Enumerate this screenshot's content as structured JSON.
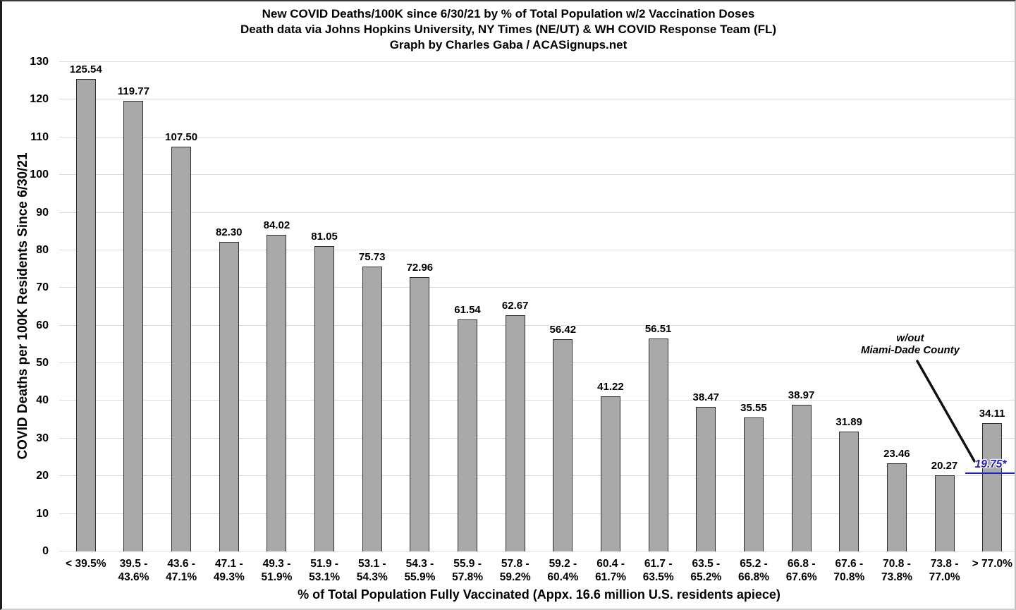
{
  "chart_data": {
    "type": "bar",
    "title": "New COVID Deaths/100K since 6/30/21 by % of Total Population w/2 Vaccination Doses",
    "subtitle": "Death data via Johns Hopkins University, NY Times (NE/UT) & WH COVID Response Team (FL)",
    "credit": "Graph by Charles Gaba / ACASignups.net",
    "xlabel": "% of Total Population Fully Vaccinated (Appx. 16.6 million U.S. residents apiece)",
    "ylabel": "COVID Deaths per 100K Residents Since 6/30/21",
    "ylim": [
      0,
      130
    ],
    "y_ticks": [
      0,
      10,
      20,
      30,
      40,
      50,
      60,
      70,
      80,
      90,
      100,
      110,
      120,
      130
    ],
    "grid": true,
    "legend": "none",
    "bar_color": "#a9a9a9",
    "bar_border_color": "#2e2e2e",
    "categories": [
      "< 39.5%",
      "39.5 - 43.6%",
      "43.6 - 47.1%",
      "47.1 - 49.3%",
      "49.3 - 51.9%",
      "51.9 - 53.1%",
      "53.1 - 54.3%",
      "54.3 - 55.9%",
      "55.9 - 57.8%",
      "57.8 - 59.2%",
      "59.2 - 60.4%",
      "60.4 - 61.7%",
      "61.7 - 63.5%",
      "63.5 - 65.2%",
      "65.2 - 66.8%",
      "66.8 - 67.6%",
      "67.6 - 70.8%",
      "70.8 - 73.8%",
      "73.8 - 77.0%",
      "> 77.0%"
    ],
    "values": [
      125.54,
      119.77,
      107.5,
      82.3,
      84.02,
      81.05,
      75.73,
      72.96,
      61.54,
      62.67,
      56.42,
      41.22,
      56.51,
      38.47,
      35.55,
      38.97,
      31.89,
      23.46,
      20.27,
      34.11
    ],
    "annotation": {
      "line1": "w/out",
      "line2": "Miami-Dade County",
      "value_label": "19.75*",
      "applies_to_category": "> 77.0%",
      "color": "#1f1fc8"
    }
  }
}
